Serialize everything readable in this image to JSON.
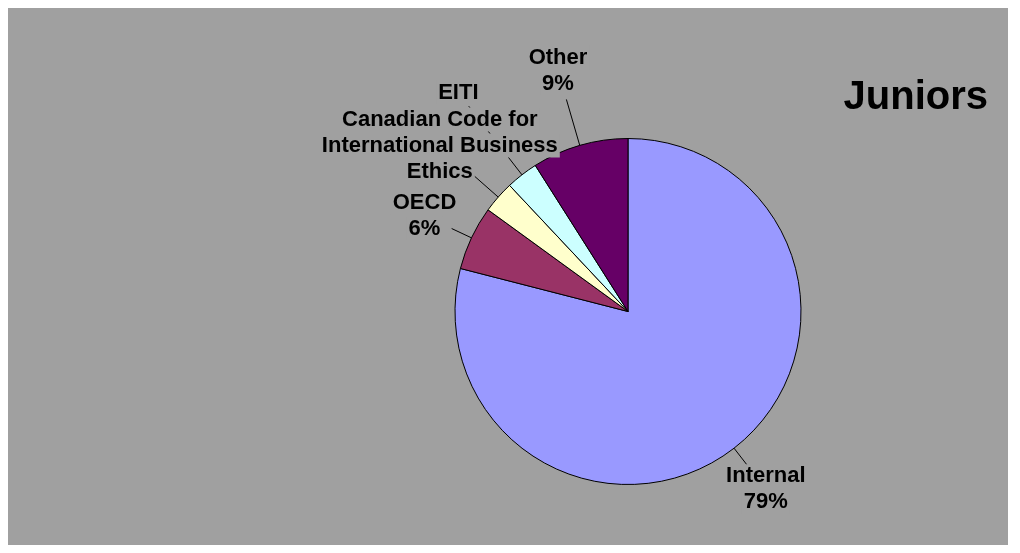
{
  "chart_data": {
    "type": "pie",
    "title": "Juniors",
    "categories": [
      "Internal",
      "OECD",
      "Canadian Code for International Business Ethics",
      "EITI",
      "Other"
    ],
    "values": [
      79,
      6,
      3,
      3,
      9
    ],
    "value_labels": [
      "79%",
      "6%",
      null,
      null,
      "9%"
    ],
    "colors": [
      "#9999ff",
      "#993366",
      "#ffffcc",
      "#ccffff",
      "#660066"
    ],
    "legend": false
  }
}
